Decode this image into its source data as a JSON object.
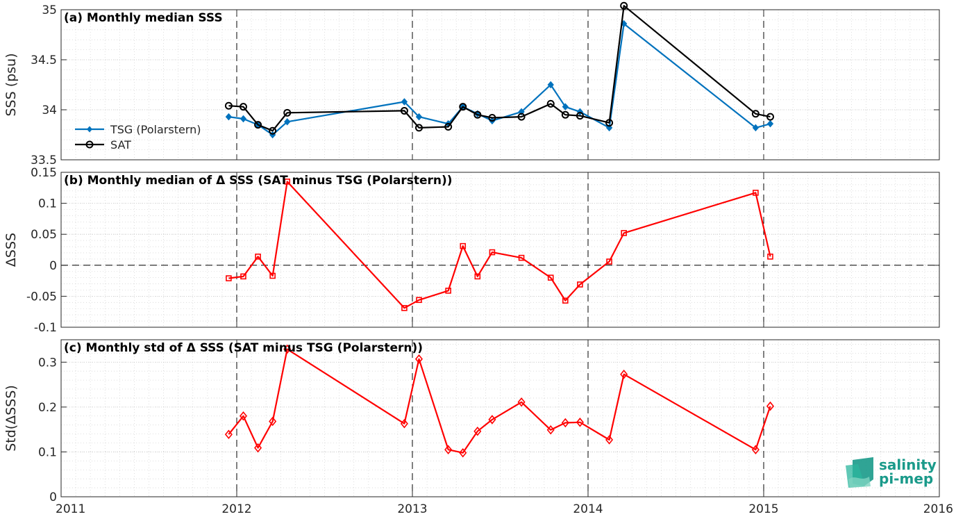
{
  "chart_data": [
    {
      "type": "line",
      "title": "(a) Monthly median SSS",
      "ylabel": "SSS (psu)",
      "ylim": [
        33.5,
        35
      ],
      "yticks": [
        33.5,
        34,
        34.5,
        35
      ],
      "ytick_labels": [
        "33.5",
        "34",
        "34.5",
        "35"
      ],
      "grid": true,
      "legend": "left",
      "series": [
        {
          "name": "TSG (Polarstern)",
          "color": "#0072bd",
          "marker": "diamond-filled",
          "x": [
            "2011-12",
            "2012-01",
            "2012-02",
            "2012-03",
            "2012-04",
            "2012-12",
            "2013-01",
            "2013-03",
            "2013-04",
            "2013-05",
            "2013-06",
            "2013-08",
            "2013-10",
            "2013-11",
            "2013-12",
            "2014-02",
            "2014-03",
            "2014-12",
            "2015-01"
          ],
          "values": [
            33.93,
            33.91,
            33.85,
            33.75,
            33.88,
            34.08,
            33.93,
            33.86,
            34.03,
            33.96,
            33.89,
            33.98,
            34.25,
            34.03,
            33.98,
            33.82,
            34.86,
            33.82,
            33.86
          ]
        },
        {
          "name": "SAT",
          "color": "#000000",
          "marker": "circle-open",
          "x": [
            "2011-12",
            "2012-01",
            "2012-02",
            "2012-03",
            "2012-04",
            "2012-12",
            "2013-01",
            "2013-03",
            "2013-04",
            "2013-05",
            "2013-06",
            "2013-08",
            "2013-10",
            "2013-11",
            "2013-12",
            "2014-02",
            "2014-03",
            "2014-12",
            "2015-01"
          ],
          "values": [
            34.04,
            34.03,
            33.85,
            33.79,
            33.97,
            33.99,
            33.82,
            33.83,
            34.03,
            33.95,
            33.92,
            33.93,
            34.06,
            33.95,
            33.94,
            33.87,
            35.04,
            33.96,
            33.93
          ]
        }
      ]
    },
    {
      "type": "line",
      "title": "(b) Monthly median of Δ SSS (SAT minus TSG (Polarstern))",
      "ylabel": "ΔSSS",
      "ylim": [
        -0.1,
        0.15
      ],
      "yticks": [
        -0.1,
        -0.05,
        0,
        0.05,
        0.1,
        0.15
      ],
      "ytick_labels": [
        "-0.1",
        "-0.05",
        "0",
        "0.05",
        "0.1",
        "0.15"
      ],
      "grid": true,
      "reference_line": 0,
      "series": [
        {
          "color": "#ff0000",
          "marker": "square-open",
          "x": [
            "2011-12",
            "2012-01",
            "2012-02",
            "2012-03",
            "2012-04",
            "2012-12",
            "2013-01",
            "2013-03",
            "2013-04",
            "2013-05",
            "2013-06",
            "2013-08",
            "2013-10",
            "2013-11",
            "2013-12",
            "2014-02",
            "2014-03",
            "2014-12",
            "2015-01"
          ],
          "values": [
            -0.021,
            -0.018,
            0.014,
            -0.017,
            0.135,
            -0.069,
            -0.056,
            -0.041,
            0.031,
            -0.018,
            0.021,
            0.012,
            -0.02,
            -0.057,
            -0.031,
            0.006,
            0.052,
            0.117,
            0.014
          ]
        }
      ]
    },
    {
      "type": "line",
      "title": "(c) Monthly std of Δ SSS (SAT minus TSG (Polarstern))",
      "ylabel": "Std(ΔSSS)",
      "ylim": [
        0,
        0.35
      ],
      "yticks": [
        0,
        0.1,
        0.2,
        0.3
      ],
      "ytick_labels": [
        "0",
        "0.1",
        "0.2",
        "0.3"
      ],
      "xlim": [
        "2011-01",
        "2016-01"
      ],
      "xticks": [
        "2011",
        "2012",
        "2013",
        "2014",
        "2015",
        "2016"
      ],
      "grid": true,
      "series": [
        {
          "color": "#ff0000",
          "marker": "diamond-open",
          "x": [
            "2011-12",
            "2012-01",
            "2012-02",
            "2012-03",
            "2012-04",
            "2012-12",
            "2013-01",
            "2013-03",
            "2013-04",
            "2013-05",
            "2013-06",
            "2013-08",
            "2013-10",
            "2013-11",
            "2013-12",
            "2014-02",
            "2014-03",
            "2014-12",
            "2015-01"
          ],
          "values": [
            0.139,
            0.18,
            0.109,
            0.168,
            0.329,
            0.163,
            0.307,
            0.105,
            0.098,
            0.146,
            0.172,
            0.211,
            0.149,
            0.165,
            0.166,
            0.127,
            0.273,
            0.105,
            0.202
          ]
        }
      ]
    }
  ],
  "logo": {
    "line1": "salinity",
    "line2": "pi-mep",
    "color": "#1a9a8a"
  }
}
